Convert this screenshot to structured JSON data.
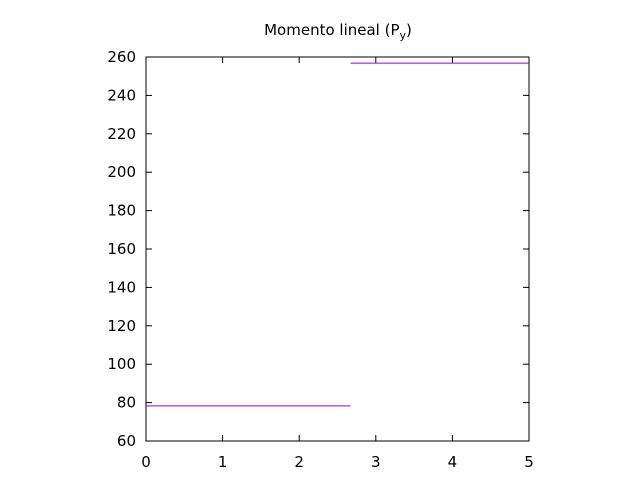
{
  "chart_data": {
    "type": "line",
    "title": "Momento lineal (P",
    "title_subscript": "y",
    "title_suffix": ")",
    "xlabel": "",
    "ylabel": "",
    "xlim": [
      0,
      5
    ],
    "ylim": [
      60,
      260
    ],
    "x_ticks": [
      0,
      1,
      2,
      3,
      4,
      5
    ],
    "y_ticks": [
      60,
      80,
      100,
      120,
      140,
      160,
      180,
      200,
      220,
      240,
      260
    ],
    "grid": false,
    "legend": "none",
    "series": [
      {
        "color": "#9400d3",
        "segments": [
          {
            "x": [
              0,
              2.67
            ],
            "y": [
              78.3,
              78.3
            ]
          },
          {
            "x": [
              2.67,
              5
            ],
            "y": [
              256.8,
              256.8
            ]
          }
        ]
      }
    ]
  }
}
